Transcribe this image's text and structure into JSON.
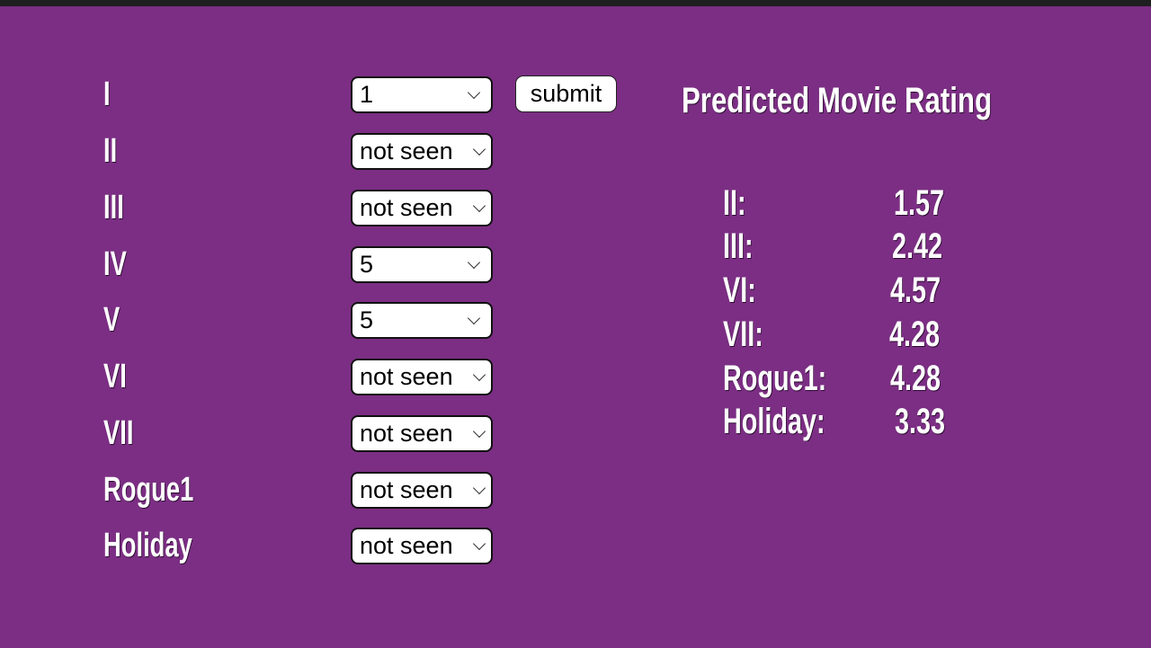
{
  "form": {
    "rows": [
      {
        "label": "I",
        "value": "1"
      },
      {
        "label": "II",
        "value": "not seen"
      },
      {
        "label": "III",
        "value": "not seen"
      },
      {
        "label": "IV",
        "value": "5"
      },
      {
        "label": "V",
        "value": "5"
      },
      {
        "label": "VI",
        "value": "not seen"
      },
      {
        "label": "VII",
        "value": "not seen"
      },
      {
        "label": "Rogue1",
        "value": "not seen"
      },
      {
        "label": "Holiday",
        "value": "not seen"
      }
    ],
    "submit_label": "submit"
  },
  "results": {
    "title": "Predicted Movie Rating",
    "items": [
      {
        "label": "II:",
        "value": "1.57"
      },
      {
        "label": "III:",
        "value": "2.42"
      },
      {
        "label": "VI:",
        "value": "4.57"
      },
      {
        "label": "VII:",
        "value": "4.28"
      },
      {
        "label": "Rogue1:",
        "value": "4.28"
      },
      {
        "label": "Holiday:",
        "value": "3.33"
      }
    ]
  },
  "colors": {
    "background": "#7b2e83",
    "text": "#ffffff"
  }
}
